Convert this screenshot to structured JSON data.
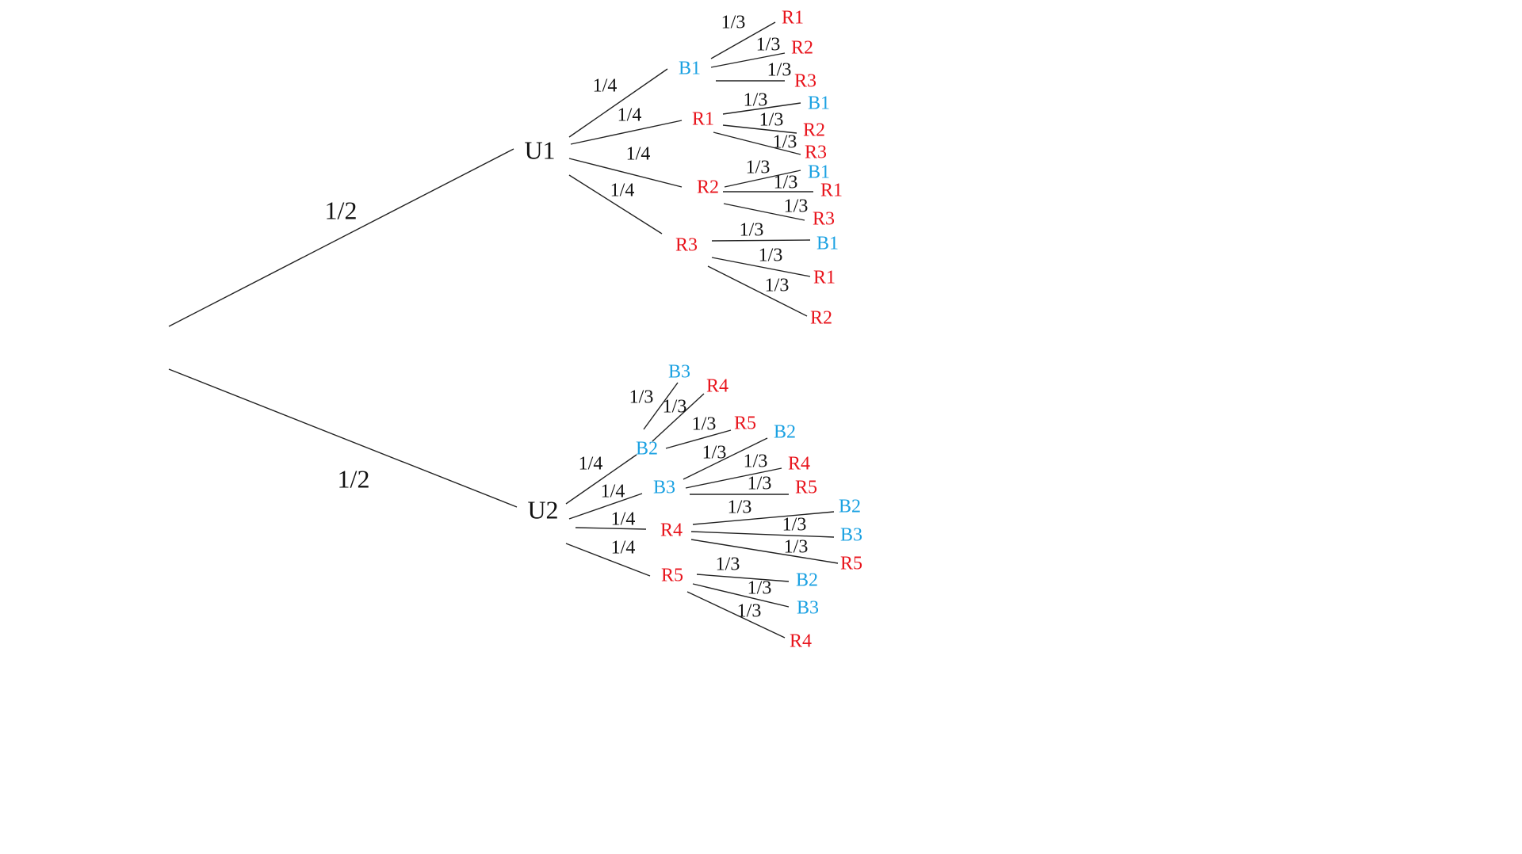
{
  "colors": {
    "blue": "#1ba1e2",
    "red": "#e8141c",
    "line": "#222222",
    "text": "#111111"
  },
  "top": {
    "branch_prob": "1/2",
    "urn": "U1",
    "children": [
      {
        "label": "B1",
        "color": "blue",
        "prob": "1/4",
        "children": [
          {
            "label": "R1",
            "color": "red",
            "prob": "1/3"
          },
          {
            "label": "R2",
            "color": "red",
            "prob": "1/3"
          },
          {
            "label": "R3",
            "color": "red",
            "prob": "1/3"
          }
        ]
      },
      {
        "label": "R1",
        "color": "red",
        "prob": "1/4",
        "children": [
          {
            "label": "B1",
            "color": "blue",
            "prob": "1/3"
          },
          {
            "label": "R2",
            "color": "red",
            "prob": "1/3"
          },
          {
            "label": "R3",
            "color": "red",
            "prob": "1/3"
          }
        ]
      },
      {
        "label": "R2",
        "color": "red",
        "prob": "1/4",
        "children": [
          {
            "label": "B1",
            "color": "blue",
            "prob": "1/3"
          },
          {
            "label": "R1",
            "color": "red",
            "prob": "1/3"
          },
          {
            "label": "R3",
            "color": "red",
            "prob": "1/3"
          }
        ]
      },
      {
        "label": "R3",
        "color": "red",
        "prob": "1/4",
        "children": [
          {
            "label": "B1",
            "color": "blue",
            "prob": "1/3"
          },
          {
            "label": "R1",
            "color": "red",
            "prob": "1/3"
          },
          {
            "label": "R2",
            "color": "red",
            "prob": "1/3"
          }
        ]
      }
    ]
  },
  "bottom": {
    "branch_prob": "1/2",
    "urn": "U2",
    "children": [
      {
        "label": "B2",
        "color": "blue",
        "prob": "1/4",
        "children": [
          {
            "label": "B3",
            "color": "blue",
            "prob": "1/3"
          },
          {
            "label": "R4",
            "color": "red",
            "prob": "1/3"
          },
          {
            "label": "R5",
            "color": "red",
            "prob": "1/3"
          }
        ]
      },
      {
        "label": "B3",
        "color": "blue",
        "prob": "1/4",
        "children": [
          {
            "label": "B2",
            "color": "blue",
            "prob": "1/3"
          },
          {
            "label": "R4",
            "color": "red",
            "prob": "1/3"
          },
          {
            "label": "R5",
            "color": "red",
            "prob": "1/3"
          }
        ]
      },
      {
        "label": "R4",
        "color": "red",
        "prob": "1/4",
        "children": [
          {
            "label": "B2",
            "color": "blue",
            "prob": "1/3"
          },
          {
            "label": "B3",
            "color": "blue",
            "prob": "1/3"
          },
          {
            "label": "R5",
            "color": "red",
            "prob": "1/3"
          }
        ]
      },
      {
        "label": "R5",
        "color": "red",
        "prob": "1/4",
        "children": [
          {
            "label": "B2",
            "color": "blue",
            "prob": "1/3"
          },
          {
            "label": "B3",
            "color": "blue",
            "prob": "1/3"
          },
          {
            "label": "R4",
            "color": "red",
            "prob": "1/3"
          }
        ]
      }
    ]
  }
}
